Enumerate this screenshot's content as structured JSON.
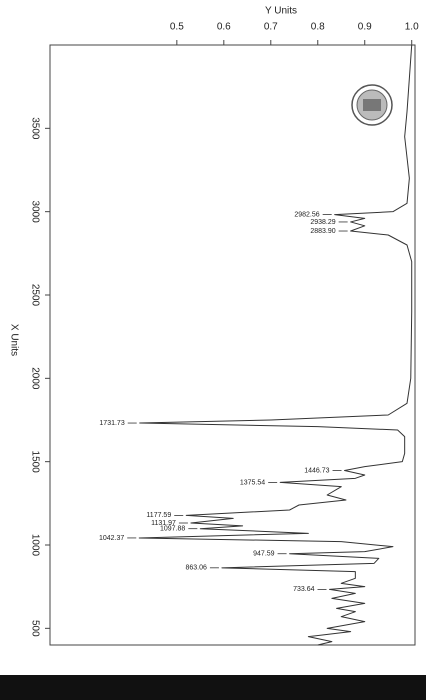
{
  "chart_data": {
    "type": "line",
    "orientation": "rotated",
    "xlabel": "X Units",
    "ylabel": "Y Units",
    "xlim": [
      4000,
      400
    ],
    "ylim": [
      0.23,
      1.007
    ],
    "xticks": [
      3500,
      3000,
      2500,
      2000,
      1500,
      1000,
      500
    ],
    "yticks": [
      0.5,
      0.6,
      0.7,
      0.8,
      0.9,
      {
        "value": 1,
        "label": "1.0"
      }
    ],
    "color": "#333333",
    "x": [
      4000,
      3800,
      3600,
      3450,
      3400,
      3200,
      3050,
      3000,
      2982.56,
      2960,
      2938.29,
      2915,
      2883.9,
      2860,
      2800,
      2700,
      2400,
      2000,
      1850,
      1780,
      1750,
      1731.73,
      1710,
      1690,
      1650,
      1600,
      1550,
      1500,
      1470,
      1446.73,
      1420,
      1400,
      1375.54,
      1350,
      1300,
      1270,
      1240,
      1210,
      1177.59,
      1160,
      1131.97,
      1115,
      1097.88,
      1070,
      1042.37,
      1020,
      990,
      960,
      947.59,
      920,
      890,
      863.06,
      840,
      800,
      770,
      750,
      733.64,
      710,
      680,
      650,
      620,
      600,
      570,
      540,
      500,
      480,
      450,
      420,
      400
    ],
    "values": [
      1.0,
      0.995,
      0.99,
      0.985,
      0.987,
      0.995,
      0.99,
      0.96,
      0.836,
      0.9,
      0.87,
      0.9,
      0.87,
      0.95,
      0.99,
      1.0,
      1.0,
      0.998,
      0.99,
      0.95,
      0.7,
      0.421,
      0.8,
      0.97,
      0.985,
      0.985,
      0.985,
      0.98,
      0.9,
      0.857,
      0.9,
      0.88,
      0.72,
      0.85,
      0.82,
      0.86,
      0.76,
      0.74,
      0.52,
      0.62,
      0.53,
      0.64,
      0.55,
      0.78,
      0.42,
      0.85,
      0.96,
      0.9,
      0.74,
      0.93,
      0.92,
      0.596,
      0.88,
      0.88,
      0.85,
      0.9,
      0.825,
      0.88,
      0.83,
      0.9,
      0.84,
      0.88,
      0.85,
      0.9,
      0.82,
      0.87,
      0.78,
      0.83,
      0.8
    ],
    "annotations": [
      {
        "label": "2982.56",
        "x": 2982.56,
        "y": 0.836
      },
      {
        "label": "2938.29",
        "x": 2938.29,
        "y": 0.87
      },
      {
        "label": "2883.90",
        "x": 2883.9,
        "y": 0.87
      },
      {
        "label": "1731.73",
        "x": 1731.73,
        "y": 0.421
      },
      {
        "label": "1446.73",
        "x": 1446.73,
        "y": 0.857
      },
      {
        "label": "1375.54",
        "x": 1375.54,
        "y": 0.72
      },
      {
        "label": "1177.59",
        "x": 1177.59,
        "y": 0.52
      },
      {
        "label": "1131.97",
        "x": 1131.97,
        "y": 0.53
      },
      {
        "label": "1097.88",
        "x": 1097.88,
        "y": 0.55
      },
      {
        "label": "1042.37",
        "x": 1042.37,
        "y": 0.42
      },
      {
        "label": "947.59",
        "x": 947.59,
        "y": 0.74
      },
      {
        "label": "863.06",
        "x": 863.06,
        "y": 0.596
      },
      {
        "label": "733.64",
        "x": 733.64,
        "y": 0.825
      }
    ]
  }
}
